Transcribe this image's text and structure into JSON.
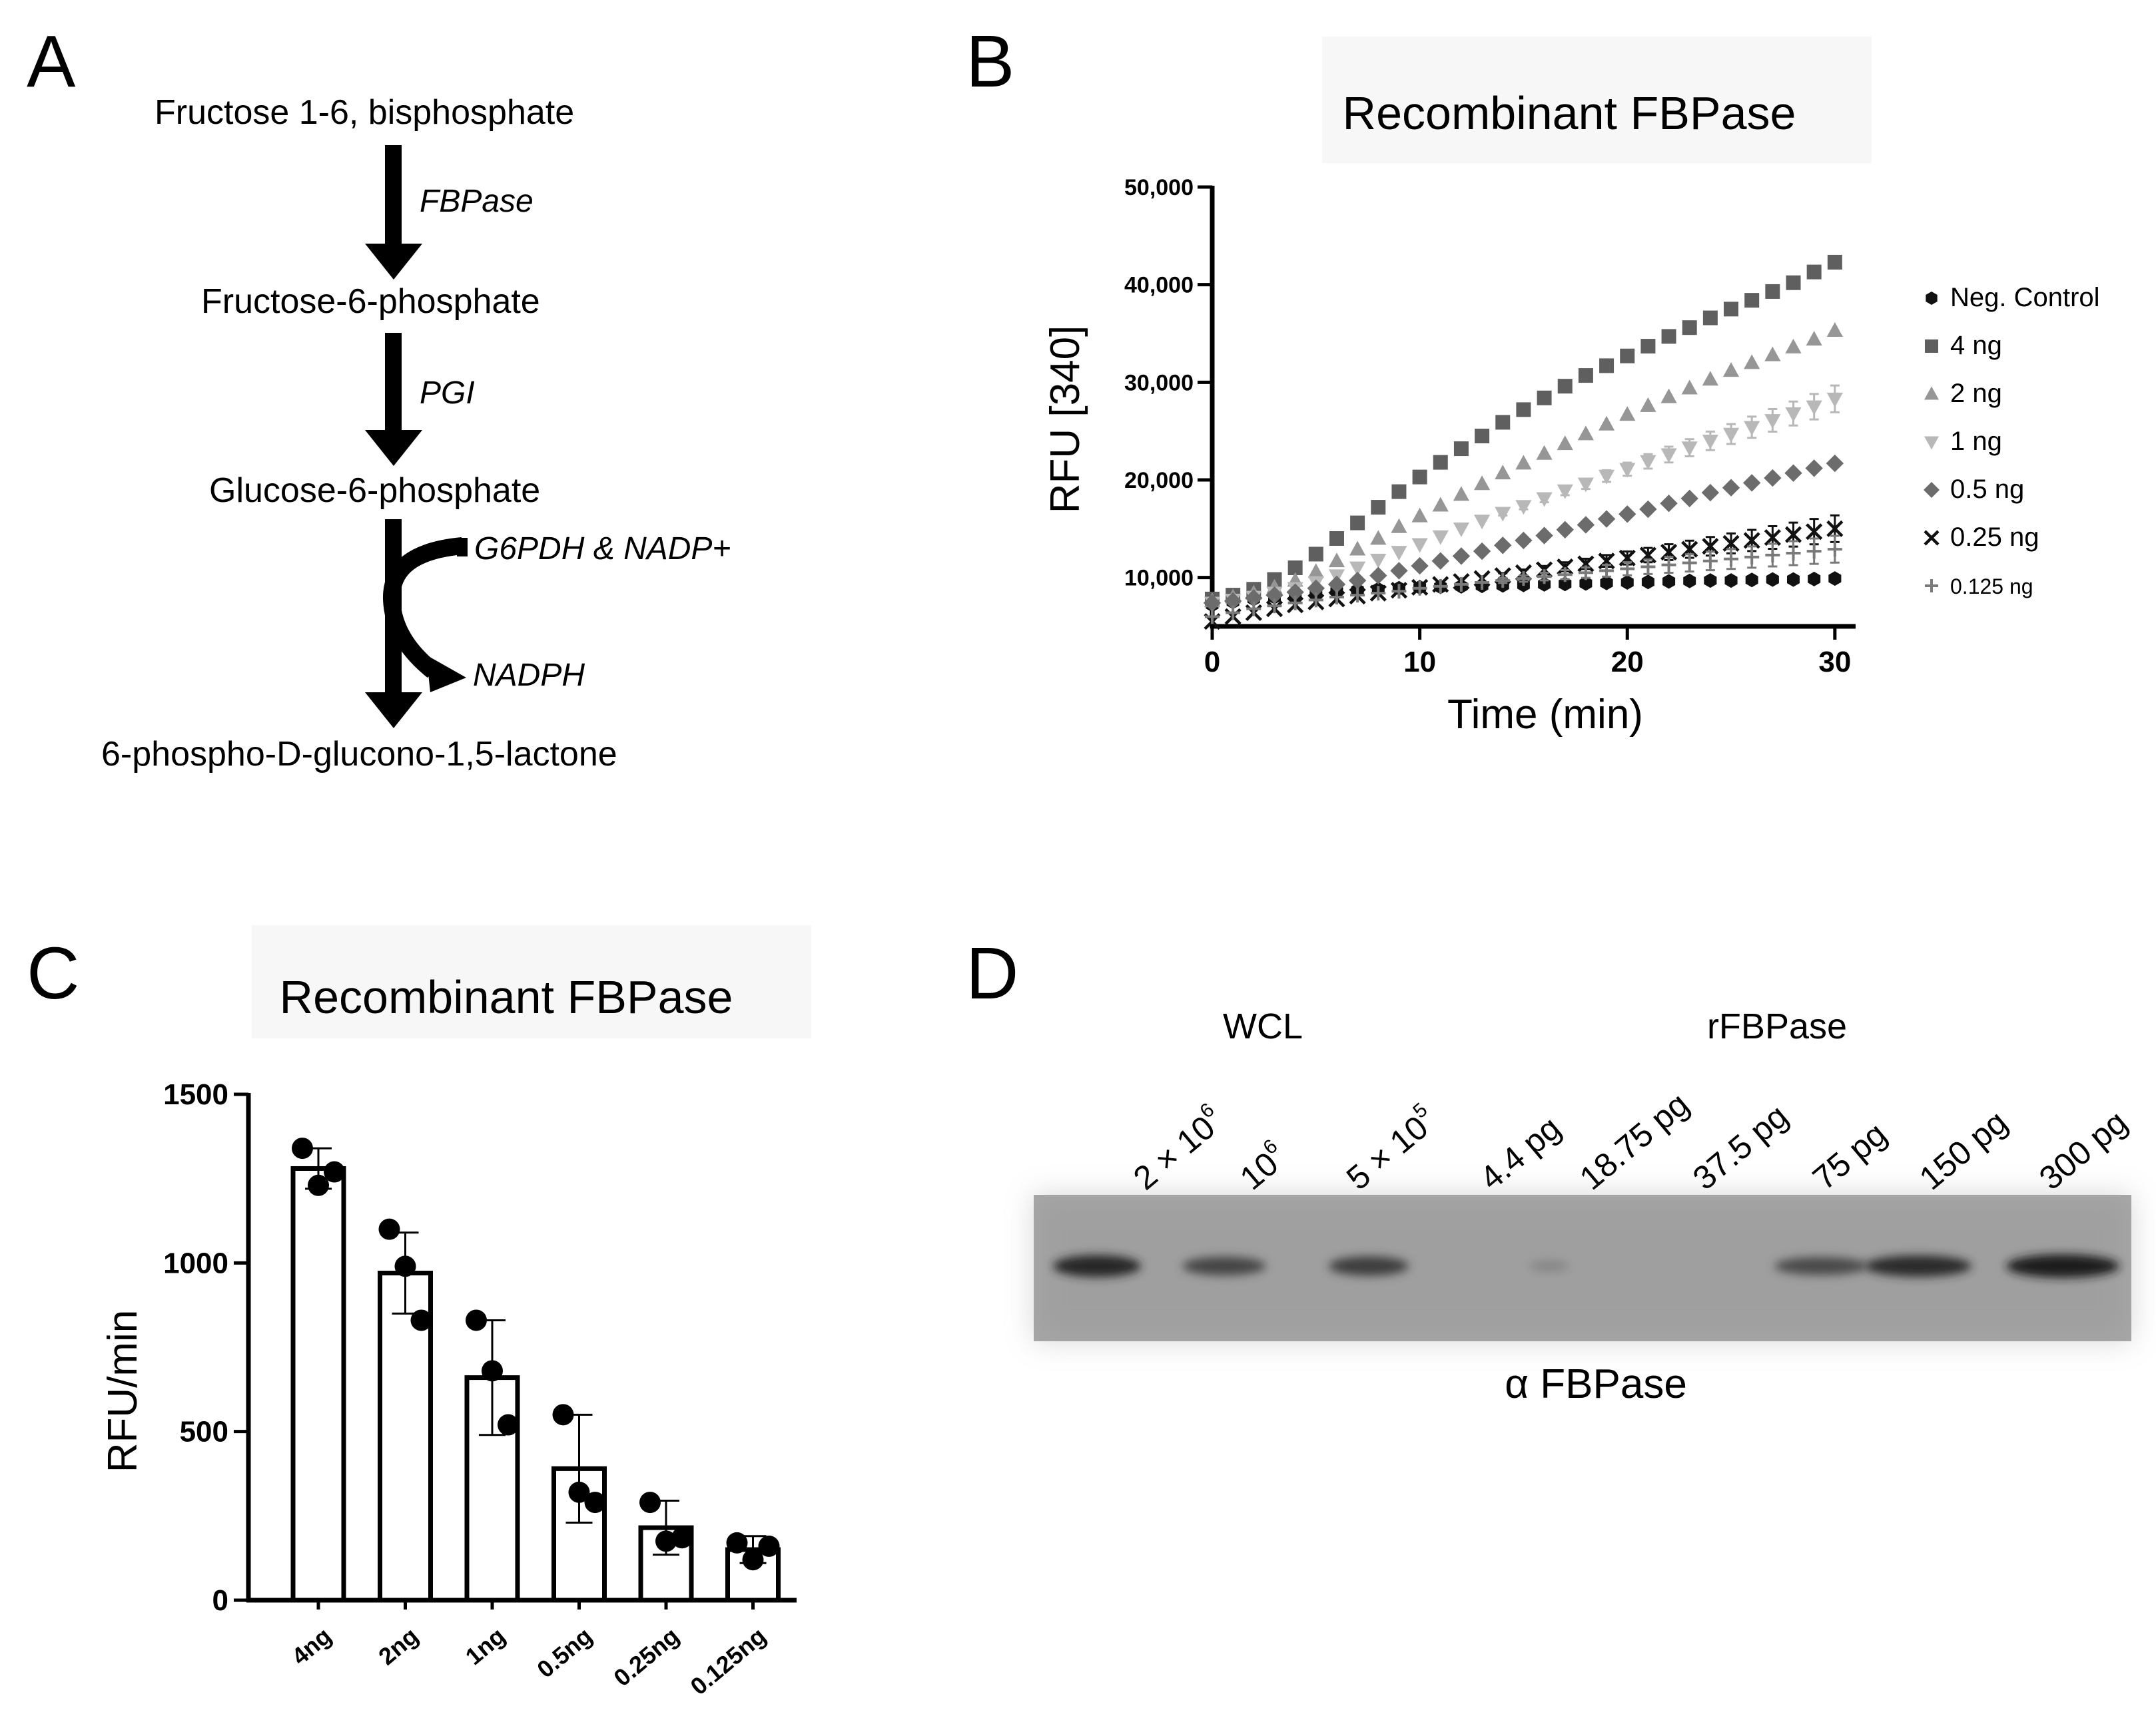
{
  "panel_labels": {
    "a": "A",
    "b": "B",
    "c": "C",
    "d": "D"
  },
  "pathway": {
    "compounds": [
      "Fructose 1-6, bisphosphate",
      "Fructose-6-phosphate",
      "Glucose-6-phosphate",
      "6-phospho-D-glucono-1,5-lactone"
    ],
    "enzymes": [
      "FBPase",
      "PGI"
    ],
    "cofactor_in": "G6PDH & NADP+",
    "cofactor_out": "NADPH"
  },
  "chart_data": [
    {
      "id": "B",
      "type": "scatter",
      "title": "Recombinant FBPase",
      "xlabel": "Time (min)",
      "ylabel": "RFU [340]",
      "xlim": [
        0,
        31
      ],
      "ylim": [
        5000,
        50000
      ],
      "xticks": [
        0,
        10,
        20,
        30
      ],
      "xtick_labels": [
        "0",
        "10",
        "20",
        "30"
      ],
      "yticks": [
        10000,
        20000,
        30000,
        40000,
        50000
      ],
      "ytick_labels": [
        "10,000",
        "20,000",
        "30,000",
        "40,000",
        "50,000"
      ],
      "grid": false,
      "legend_position": "right",
      "x": [
        0,
        1,
        2,
        3,
        4,
        5,
        6,
        7,
        8,
        9,
        10,
        11,
        12,
        13,
        14,
        15,
        16,
        17,
        18,
        19,
        20,
        21,
        22,
        23,
        24,
        25,
        26,
        27,
        28,
        29,
        30
      ],
      "series": [
        {
          "name": "Neg. Control",
          "marker": "hexagon",
          "color": "#111111",
          "values": [
            7200,
            7500,
            7800,
            8000,
            8200,
            8400,
            8600,
            8700,
            8800,
            8900,
            9000,
            9050,
            9100,
            9150,
            9200,
            9250,
            9300,
            9350,
            9400,
            9450,
            9500,
            9550,
            9600,
            9650,
            9700,
            9700,
            9750,
            9800,
            9800,
            9850,
            9900
          ]
        },
        {
          "name": "4 ng",
          "marker": "square",
          "color": "#5f5f5f",
          "values": [
            7800,
            8200,
            8800,
            9800,
            11000,
            12400,
            14000,
            15600,
            17200,
            18800,
            20300,
            21800,
            23200,
            24500,
            25900,
            27200,
            28400,
            29600,
            30700,
            31700,
            32700,
            33700,
            34700,
            35600,
            36600,
            37500,
            38400,
            39300,
            40200,
            41300,
            42300
          ]
        },
        {
          "name": "2 ng",
          "marker": "triangle-up",
          "color": "#969696",
          "values": [
            7600,
            8000,
            8400,
            9000,
            9700,
            10600,
            11700,
            12900,
            14000,
            15200,
            16300,
            17400,
            18500,
            19600,
            20700,
            21700,
            22700,
            23700,
            24700,
            25700,
            26700,
            27600,
            28500,
            29400,
            30300,
            31200,
            32000,
            32800,
            33600,
            34400,
            35300
          ]
        },
        {
          "name": "1 ng",
          "marker": "triangle-down",
          "color": "#b8b8b8",
          "values": [
            7400,
            7700,
            8000,
            8400,
            8900,
            9500,
            10200,
            11000,
            11800,
            12600,
            13400,
            14200,
            15000,
            15800,
            16600,
            17300,
            18100,
            18900,
            19600,
            20400,
            21100,
            21900,
            22600,
            23300,
            24000,
            24700,
            25400,
            26100,
            26800,
            27500,
            28300
          ]
        },
        {
          "name": "0.5 ng",
          "marker": "diamond",
          "color": "#6c6c6c",
          "values": [
            7400,
            7600,
            7900,
            8200,
            8500,
            8900,
            9300,
            9700,
            10200,
            10700,
            11200,
            11700,
            12200,
            12700,
            13300,
            13800,
            14300,
            14900,
            15400,
            16000,
            16500,
            17000,
            17600,
            18100,
            18700,
            19200,
            19700,
            20200,
            20700,
            21200,
            21700
          ]
        },
        {
          "name": "0.25 ng",
          "marker": "x",
          "color": "#111111",
          "values": [
            5500,
            6000,
            6400,
            6800,
            7200,
            7500,
            7800,
            8100,
            8400,
            8700,
            9000,
            9300,
            9600,
            9900,
            10200,
            10500,
            10800,
            11100,
            11400,
            11700,
            12000,
            12300,
            12600,
            12900,
            13200,
            13500,
            13800,
            14100,
            14400,
            14700,
            15000
          ]
        },
        {
          "name": "0.125 ng",
          "marker": "plus",
          "color": "#7a7a7a",
          "values": [
            6000,
            6400,
            6800,
            7100,
            7400,
            7700,
            8000,
            8200,
            8400,
            8600,
            8900,
            9100,
            9300,
            9500,
            9700,
            9900,
            10100,
            10300,
            10500,
            10700,
            10900,
            11100,
            11300,
            11500,
            11700,
            11900,
            12100,
            12300,
            12500,
            12700,
            12900
          ]
        }
      ]
    },
    {
      "id": "C",
      "type": "bar",
      "title": "Recombinant FBPase",
      "ylabel": "RFU/min",
      "xlabel": "",
      "ylim": [
        0,
        1500
      ],
      "yticks": [
        0,
        500,
        1000,
        1500
      ],
      "ytick_labels": [
        "0",
        "500",
        "1000",
        "1500"
      ],
      "categories": [
        "4ng",
        "2ng",
        "1ng",
        "0.5ng",
        "0.25ng",
        "0.125ng"
      ],
      "values": [
        1280,
        970,
        660,
        390,
        215,
        150
      ],
      "errors": [
        60,
        120,
        170,
        160,
        80,
        40
      ],
      "points": [
        [
          1340,
          1230,
          1270
        ],
        [
          1100,
          990,
          830
        ],
        [
          830,
          680,
          520
        ],
        [
          550,
          320,
          290
        ],
        [
          290,
          175,
          185
        ],
        [
          170,
          120,
          160
        ]
      ]
    }
  ],
  "western_blot": {
    "group_labels": [
      "WCL",
      "rFBPase"
    ],
    "lane_labels": [
      {
        "base": "2 × 10",
        "sup": "6"
      },
      {
        "base": "10",
        "sup": "6"
      },
      {
        "base": "5 × 10",
        "sup": "5"
      },
      {
        "base": "4.4 pg",
        "sup": ""
      },
      {
        "base": "18.75 pg",
        "sup": ""
      },
      {
        "base": "37.5 pg",
        "sup": ""
      },
      {
        "base": "75 pg",
        "sup": ""
      },
      {
        "base": "150 pg",
        "sup": ""
      },
      {
        "base": "300 pg",
        "sup": ""
      }
    ],
    "band_intensity": [
      0.85,
      0.6,
      0.65,
      0.0,
      0.05,
      0.0,
      0.55,
      0.8,
      0.95
    ],
    "antibody_label": "α FBPase"
  }
}
